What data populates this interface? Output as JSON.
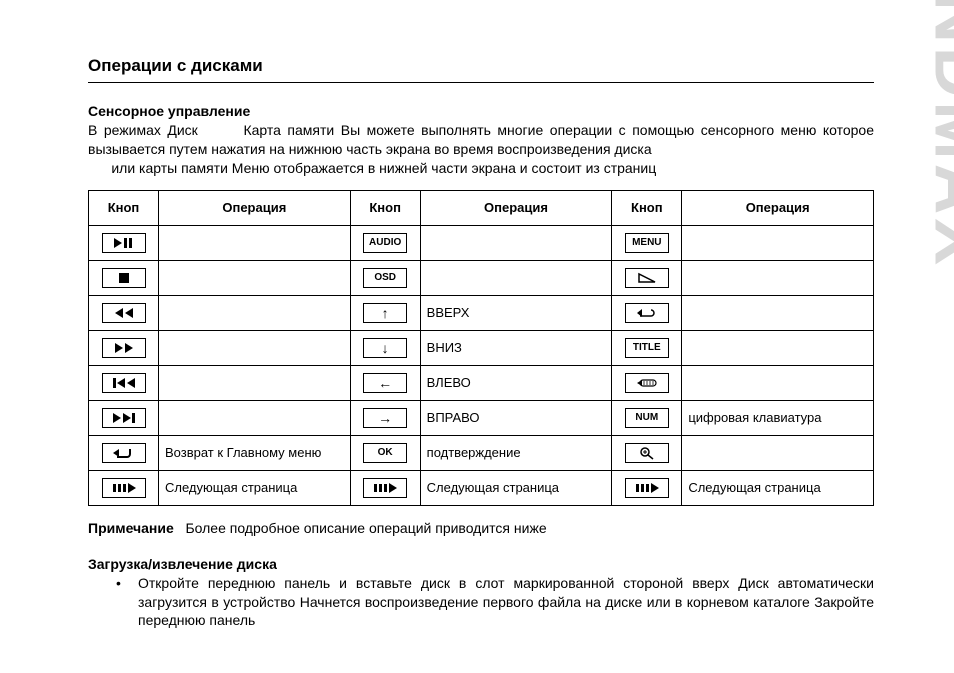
{
  "watermark": "SOUNDMAX",
  "page_title": "Операции с дисками",
  "section1_heading": "Сенсорное управление",
  "intro_line1": "В режимах Диск",
  "intro_line1b": "Карта памяти Вы можете выполнять многие операции с помощью сенсорного меню  которое вызывается путем нажатия на нижнюю часть экрана во время воспроизведения диска",
  "intro_line2": "или карты памяти  Меню отображается в нижней части экрана и состоит из    страниц",
  "table": {
    "headers": {
      "btn": "Кноп",
      "op": "Операция"
    },
    "rows": [
      {
        "b1": "play-pause",
        "o1": "",
        "b2": "AUDIO",
        "o2": "",
        "b3": "MENU",
        "o3": ""
      },
      {
        "b1": "stop",
        "o1": "",
        "b2": "OSD",
        "o2": "",
        "b3": "angle",
        "o3": ""
      },
      {
        "b1": "rew",
        "o1": "",
        "b2": "↑",
        "o2": "ВВЕРХ",
        "b3": "return",
        "o3": ""
      },
      {
        "b1": "ffwd",
        "o1": "",
        "b2": "↓",
        "o2": "ВНИЗ",
        "b3": "TITLE",
        "o3": ""
      },
      {
        "b1": "prev",
        "o1": "",
        "b2": "←",
        "o2": "ВЛЕВО",
        "b3": "goto",
        "o3": ""
      },
      {
        "b1": "next",
        "o1": "",
        "b2": "→",
        "o2": "ВПРАВО",
        "b3": "NUM",
        "o3": "цифровая клавиатура"
      },
      {
        "b1": "back",
        "o1": "Возврат к Главному меню",
        "b2": "OK",
        "o2": "подтверждение",
        "b3": "zoom",
        "o3": ""
      },
      {
        "b1": "page-next",
        "o1": "Следующая страница",
        "b2": "page-next",
        "o2": "Следующая страница",
        "b3": "page-next",
        "o3": "Следующая страница"
      }
    ]
  },
  "note_label": "Примечание",
  "note_text": "Более подробное описание операций приводится ниже",
  "section2_heading": "Загрузка/извлечение диска",
  "bullet1": "Откройте переднюю панель и вставьте диск в слот маркированной стороной вверх  Диск автоматически загрузится в устройство  Начнется воспроизведение первого файла на диске или в корневом каталоге  Закройте переднюю панель"
}
